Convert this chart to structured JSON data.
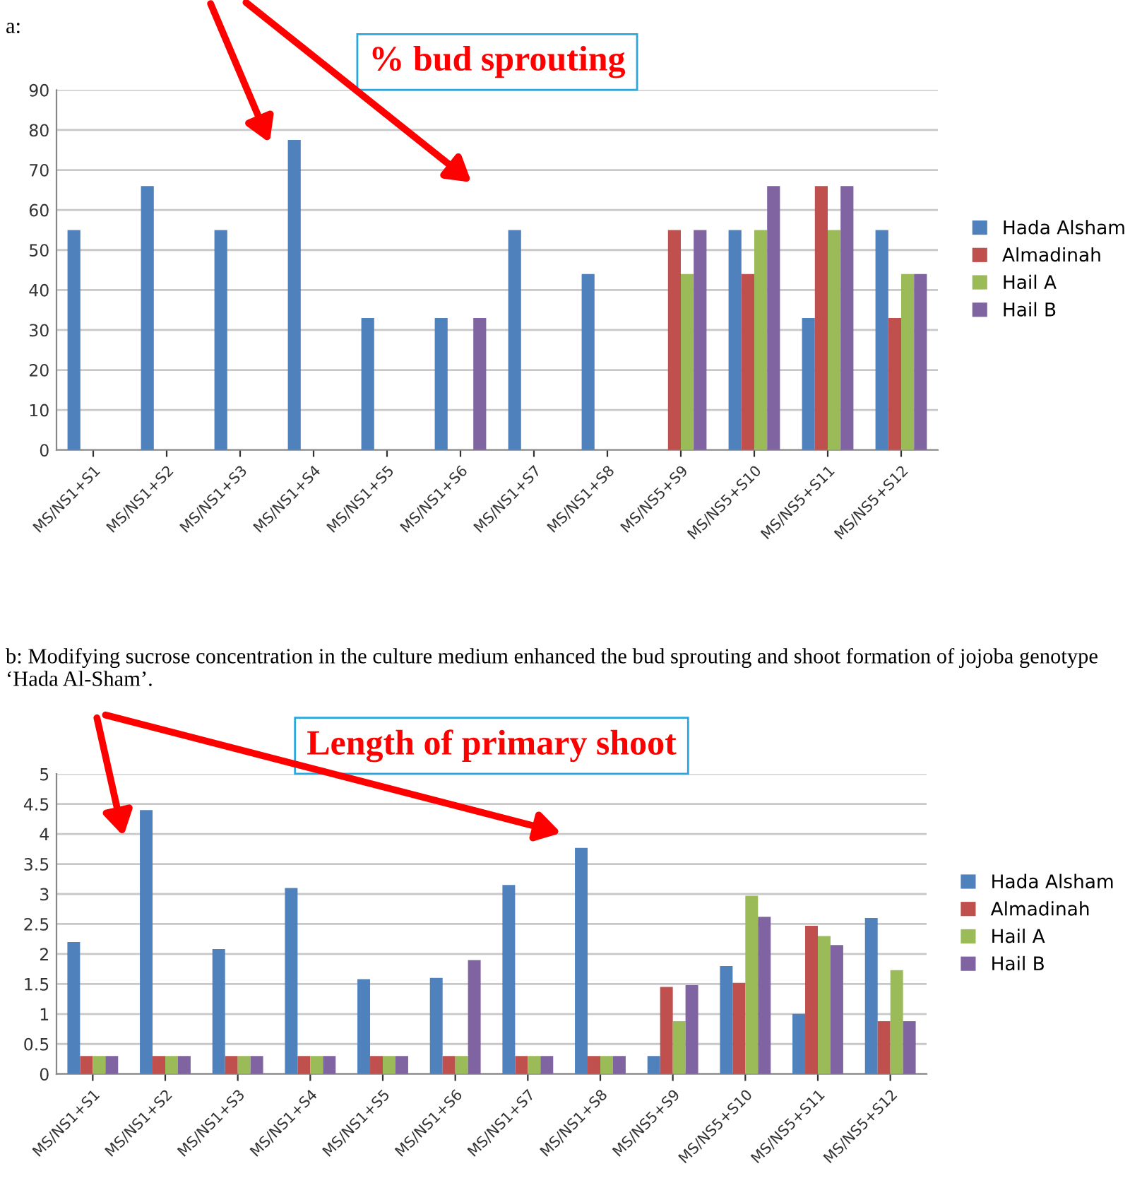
{
  "chart_data": [
    {
      "type": "bar",
      "title": "% bud sprouting",
      "annotations": [
        "a:"
      ],
      "categories": [
        "MS/NS1+S1",
        "MS/NS1+S2",
        "MS/NS1+S3",
        "MS/NS1+S4",
        "MS/NS1+S5",
        "MS/NS1+S6",
        "MS/NS1+S7",
        "MS/NS1+S8",
        "MS/NS5+S9",
        "MS/NS5+S10",
        "MS/NS5+S11",
        "MS/NS5+S12"
      ],
      "series": [
        {
          "name": "Hada Alsham",
          "color": "#4f81bd",
          "values": [
            55,
            66,
            55,
            77.5,
            33,
            33,
            55,
            44,
            0,
            55,
            33,
            55
          ]
        },
        {
          "name": "Almadinah",
          "color": "#c0504d",
          "values": [
            0,
            0,
            0,
            0,
            0,
            0,
            0,
            0,
            55,
            44,
            66,
            33
          ]
        },
        {
          "name": "Hail A",
          "color": "#9bbb59",
          "values": [
            0,
            0,
            0,
            0,
            0,
            0,
            0,
            0,
            44,
            55,
            55,
            44
          ]
        },
        {
          "name": "Hail B",
          "color": "#8064a2",
          "values": [
            0,
            0,
            0,
            0,
            0,
            33,
            0,
            0,
            55,
            66,
            66,
            44
          ]
        }
      ],
      "ylim": [
        0,
        90
      ],
      "yticks": [
        0,
        10,
        20,
        30,
        40,
        50,
        60,
        70,
        80,
        90
      ],
      "grid": "y",
      "legend": "right"
    },
    {
      "type": "bar",
      "title": "Length of primary shoot",
      "annotations": [
        "b: Modifying sucrose concentration in the culture medium enhanced the bud sprouting and shoot formation of jojoba genotype ‘Hada Al-Sham’."
      ],
      "categories": [
        "MS/NS1+S1",
        "MS/NS1+S2",
        "MS/NS1+S3",
        "MS/NS1+S4",
        "MS/NS1+S5",
        "MS/NS1+S6",
        "MS/NS1+S7",
        "MS/NS1+S8",
        "MS/NS5+S9",
        "MS/NS5+S10",
        "MS/NS5+S11",
        "MS/NS5+S12"
      ],
      "series": [
        {
          "name": "Hada Alsham",
          "color": "#4f81bd",
          "values": [
            2.2,
            4.4,
            2.08,
            3.1,
            1.58,
            1.6,
            3.15,
            3.77,
            0.3,
            1.8,
            1.0,
            2.6
          ]
        },
        {
          "name": "Almadinah",
          "color": "#c0504d",
          "values": [
            0.3,
            0.3,
            0.3,
            0.3,
            0.3,
            0.3,
            0.3,
            0.3,
            1.45,
            1.52,
            2.47,
            0.88
          ]
        },
        {
          "name": "Hail A",
          "color": "#9bbb59",
          "values": [
            0.3,
            0.3,
            0.3,
            0.3,
            0.3,
            0.3,
            0.3,
            0.3,
            0.88,
            2.97,
            2.3,
            1.73
          ]
        },
        {
          "name": "Hail B",
          "color": "#8064a2",
          "values": [
            0.3,
            0.3,
            0.3,
            0.3,
            0.3,
            1.9,
            0.3,
            0.3,
            1.48,
            2.62,
            2.15,
            0.88
          ]
        }
      ],
      "ylim": [
        0,
        5
      ],
      "yticks": [
        0,
        0.5,
        1,
        1.5,
        2,
        2.5,
        3,
        3.5,
        4,
        4.5,
        5
      ],
      "grid": "y",
      "legend": "right"
    }
  ]
}
